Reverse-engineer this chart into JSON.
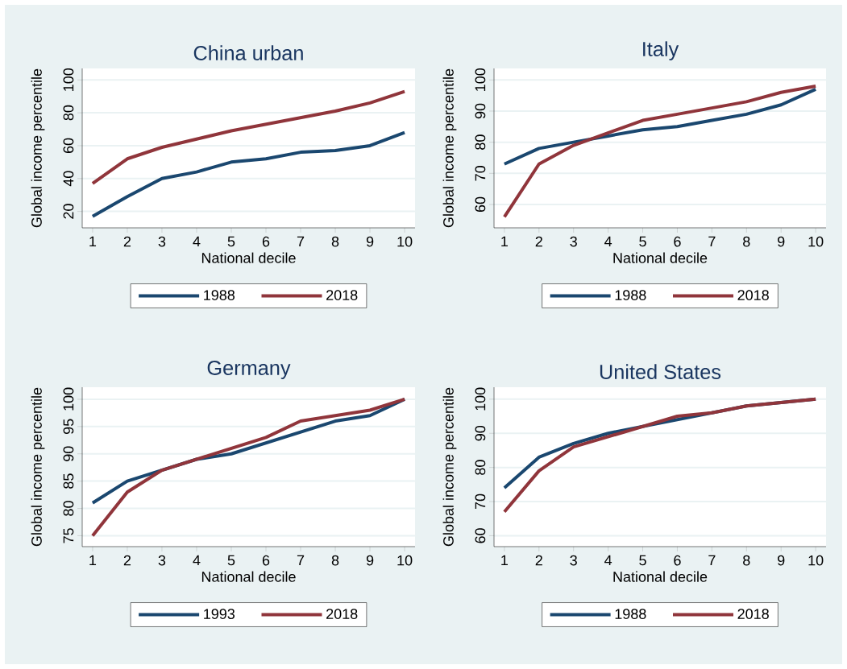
{
  "chart_data": [
    {
      "type": "line",
      "title": "China urban",
      "xlabel": "National decile",
      "ylabel": "Global income percentile",
      "x": [
        1,
        2,
        3,
        4,
        5,
        6,
        7,
        8,
        9,
        10
      ],
      "xlim": [
        0.7,
        10.3
      ],
      "xticks": [
        1,
        2,
        3,
        4,
        5,
        6,
        7,
        8,
        9,
        10
      ],
      "ylim": [
        10,
        107
      ],
      "yticks": [
        20,
        40,
        60,
        80,
        100
      ],
      "grid": "y",
      "legend": "bottom",
      "series": [
        {
          "name": "1988",
          "color": "#1a476f",
          "values": [
            17,
            29,
            40,
            44,
            50,
            52,
            56,
            57,
            60,
            68
          ]
        },
        {
          "name": "2018",
          "color": "#90353b",
          "values": [
            37,
            52,
            59,
            64,
            69,
            73,
            77,
            81,
            86,
            93
          ]
        }
      ]
    },
    {
      "type": "line",
      "title": "Italy",
      "xlabel": "National decile",
      "ylabel": "Global income percentile",
      "x": [
        1,
        2,
        3,
        4,
        5,
        6,
        7,
        8,
        9,
        10
      ],
      "xlim": [
        0.7,
        10.3
      ],
      "xticks": [
        1,
        2,
        3,
        4,
        5,
        6,
        7,
        8,
        9,
        10
      ],
      "ylim": [
        52.5,
        103.7
      ],
      "yticks": [
        60,
        70,
        80,
        90,
        100
      ],
      "grid": "y",
      "legend": "bottom",
      "series": [
        {
          "name": "1988",
          "color": "#1a476f",
          "values": [
            73,
            78,
            80,
            82,
            84,
            85,
            87,
            89,
            92,
            97
          ]
        },
        {
          "name": "2018",
          "color": "#90353b",
          "values": [
            56,
            73,
            79,
            83,
            87,
            89,
            91,
            93,
            96,
            98
          ]
        }
      ]
    },
    {
      "type": "line",
      "title": "Germany",
      "xlabel": "National decile",
      "ylabel": "Global income percentile",
      "x": [
        1,
        2,
        3,
        4,
        5,
        6,
        7,
        8,
        9,
        10
      ],
      "xlim": [
        0.7,
        10.3
      ],
      "xticks": [
        1,
        2,
        3,
        4,
        5,
        6,
        7,
        8,
        9,
        10
      ],
      "ylim": [
        73,
        102.2
      ],
      "yticks": [
        75,
        80,
        85,
        90,
        95,
        100
      ],
      "grid": "y",
      "legend": "bottom",
      "series": [
        {
          "name": "1993",
          "color": "#1a476f",
          "values": [
            81,
            85,
            87,
            89,
            90,
            92,
            94,
            96,
            97,
            100
          ]
        },
        {
          "name": "2018",
          "color": "#90353b",
          "values": [
            75,
            83,
            87,
            89,
            91,
            93,
            96,
            97,
            98,
            100
          ]
        }
      ]
    },
    {
      "type": "line",
      "title": "United States",
      "xlabel": "National decile",
      "ylabel": "Global income percentile",
      "x": [
        1,
        2,
        3,
        4,
        5,
        6,
        7,
        8,
        9,
        10
      ],
      "xlim": [
        0.7,
        10.3
      ],
      "xticks": [
        1,
        2,
        3,
        4,
        5,
        6,
        7,
        8,
        9,
        10
      ],
      "ylim": [
        56.8,
        103.5
      ],
      "yticks": [
        60,
        70,
        80,
        90,
        100
      ],
      "grid": "y",
      "legend": "bottom",
      "series": [
        {
          "name": "1988",
          "color": "#1a476f",
          "values": [
            74,
            83,
            87,
            90,
            92,
            94,
            96,
            98,
            99,
            100
          ]
        },
        {
          "name": "2018",
          "color": "#90353b",
          "values": [
            67,
            79,
            86,
            89,
            92,
            95,
            96,
            98,
            99,
            100
          ]
        }
      ]
    }
  ]
}
